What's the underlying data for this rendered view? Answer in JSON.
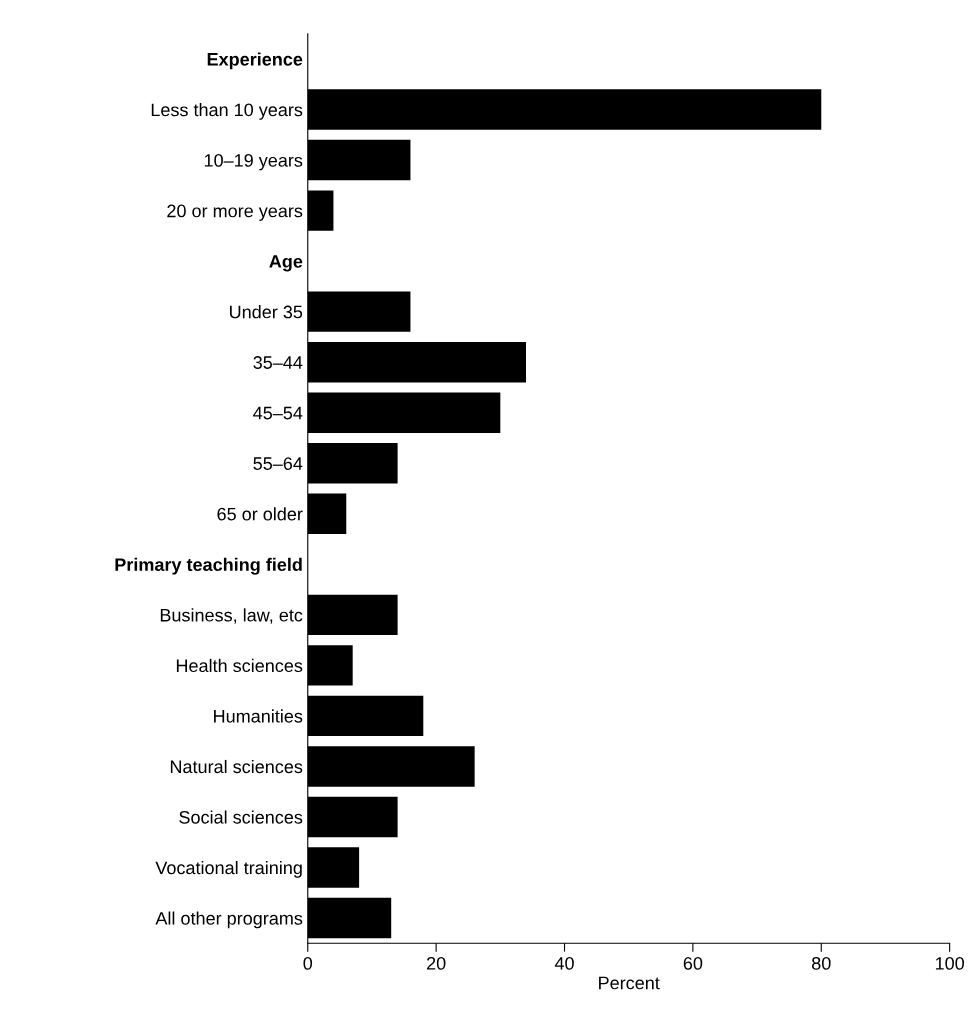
{
  "chart_data": {
    "type": "bar",
    "orientation": "horizontal",
    "xlabel": "Percent",
    "categories": [
      "Experience",
      "Less than 10 years",
      "10–19 years",
      "20 or more years",
      "Age",
      "Under 35",
      "35–44",
      "45–54",
      "55–64",
      "65 or older",
      "Primary teaching field",
      "Business, law, etc",
      "Health sciences",
      "Humanities",
      "Natural sciences",
      "Social sciences",
      "Vocational training",
      "All other programs"
    ],
    "values": [
      null,
      80,
      16,
      4,
      null,
      16,
      34,
      30,
      14,
      6,
      null,
      14,
      7,
      18,
      26,
      14,
      8,
      13
    ],
    "color": "#000000",
    "xlim": [
      0,
      100
    ],
    "xticks": [
      0,
      20,
      40,
      60,
      80,
      100
    ],
    "grid": false,
    "legend": false
  }
}
